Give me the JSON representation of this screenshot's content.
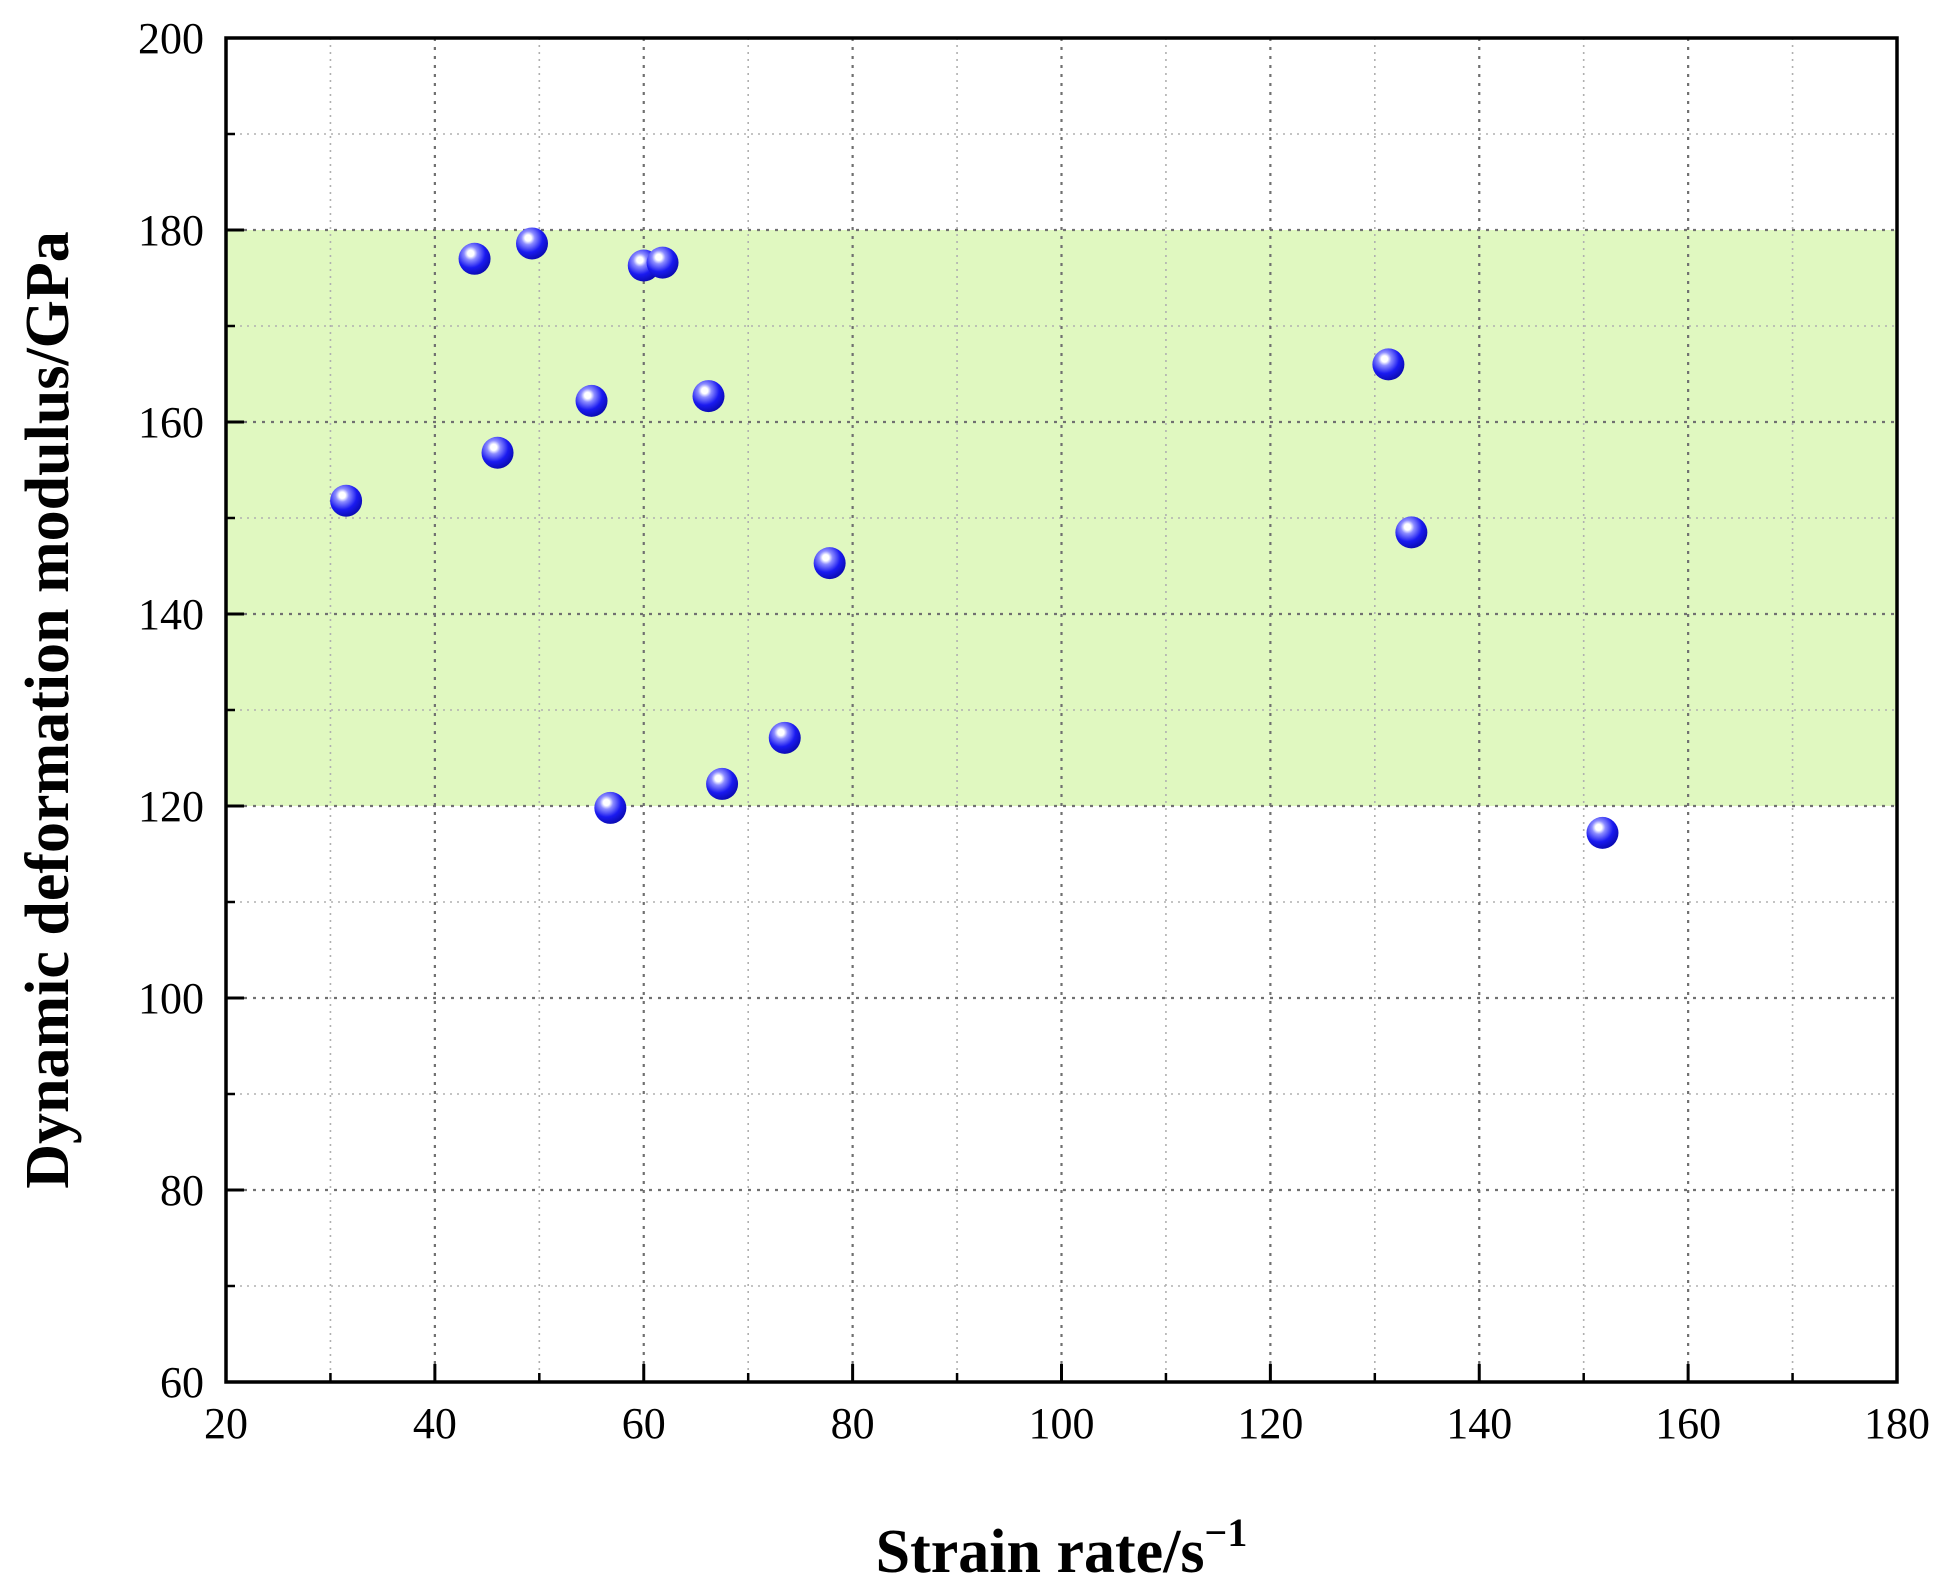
{
  "chart_data": {
    "type": "scatter",
    "xlabel": "Strain rate/s",
    "xlabel_superscript": "−1",
    "ylabel": "Dynamic deformation modulus/GPa",
    "xlim": [
      20,
      180
    ],
    "ylim": [
      60,
      200
    ],
    "x_ticks": [
      20,
      40,
      60,
      80,
      100,
      120,
      140,
      160,
      180
    ],
    "y_ticks": [
      60,
      80,
      100,
      120,
      140,
      160,
      180,
      200
    ],
    "grid": true,
    "shaded_band": {
      "y_range": [
        120,
        180
      ],
      "color": "#e0f8c0"
    },
    "marker_color": "#1a1af0",
    "points": [
      {
        "x": 31.5,
        "y": 151.8
      },
      {
        "x": 43.8,
        "y": 177.0
      },
      {
        "x": 46.0,
        "y": 156.8
      },
      {
        "x": 49.3,
        "y": 178.6
      },
      {
        "x": 55.0,
        "y": 162.2
      },
      {
        "x": 56.8,
        "y": 119.8
      },
      {
        "x": 60.0,
        "y": 176.3
      },
      {
        "x": 61.8,
        "y": 176.6
      },
      {
        "x": 66.2,
        "y": 162.7
      },
      {
        "x": 67.5,
        "y": 122.3
      },
      {
        "x": 73.5,
        "y": 127.1
      },
      {
        "x": 77.8,
        "y": 145.3
      },
      {
        "x": 131.3,
        "y": 166.0
      },
      {
        "x": 133.5,
        "y": 148.5
      },
      {
        "x": 151.8,
        "y": 117.2
      }
    ]
  }
}
